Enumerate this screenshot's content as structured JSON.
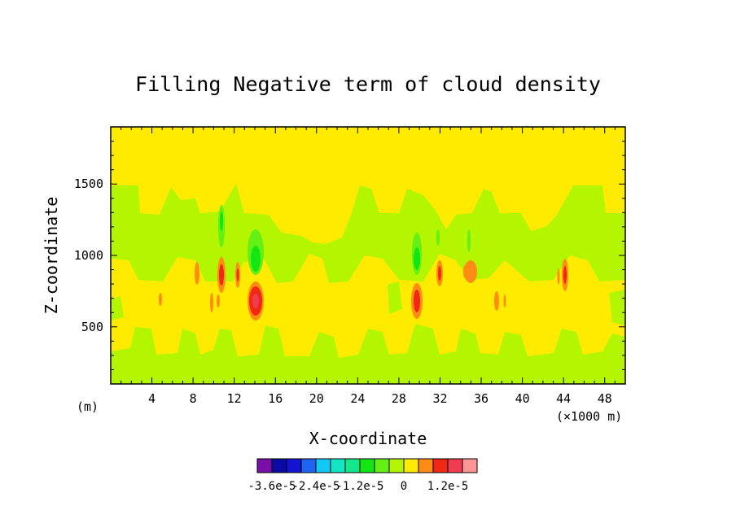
{
  "chart_data": {
    "type": "heatmap",
    "title": "Filling Negative term of cloud density",
    "xlabel": "X-coordinate",
    "ylabel": "Z-coordinate",
    "x_unit_label": "(m)",
    "x_scale_label": "(×1000 m)",
    "xlim": [
      0,
      50
    ],
    "ylim": [
      100,
      1900
    ],
    "x_ticks": [
      4,
      8,
      12,
      16,
      20,
      24,
      28,
      32,
      36,
      40,
      44,
      48
    ],
    "x_tick_labels": [
      "4",
      "8",
      "12",
      "16",
      "20",
      "24",
      "28",
      "32",
      "36",
      "40",
      "44",
      "48"
    ],
    "y_ticks": [
      500,
      1000,
      1500
    ],
    "y_tick_labels": [
      "500",
      "1000",
      "1500"
    ],
    "colorbar": {
      "colors": [
        "#7a0fa8",
        "#0a0aa5",
        "#1414d2",
        "#1e64f0",
        "#14c8f5",
        "#14e6c3",
        "#14e68c",
        "#14e614",
        "#64f014",
        "#b4f500",
        "#ffeb00",
        "#ff8c14",
        "#f02814",
        "#f03c50",
        "#ff9696"
      ],
      "tick_labels": [
        "-3.6e-5",
        "-2.4e-5",
        "-1.2e-5",
        "0",
        "1.2e-5"
      ]
    },
    "background_field": {
      "dominant_value": "0 (yellow band)",
      "secondary_value": "slightly negative (light green band)"
    },
    "features": [
      {
        "kind": "max",
        "x": 14.0,
        "z": 690,
        "level": "1.2e-5 (red/pink core)"
      },
      {
        "kind": "max",
        "x": 29.8,
        "z": 690,
        "level": "1.2e-5 (red core)"
      },
      {
        "kind": "min",
        "x": 14.0,
        "z": 1070,
        "level": "green"
      },
      {
        "kind": "min",
        "x": 29.8,
        "z": 1080,
        "level": "green"
      },
      {
        "kind": "min",
        "x": 10.8,
        "z": 1220,
        "level": "green"
      },
      {
        "kind": "max",
        "x": 8.5,
        "z": 880,
        "level": "orange"
      },
      {
        "kind": "max",
        "x": 10.8,
        "z": 880,
        "level": "red"
      },
      {
        "kind": "max",
        "x": 12.4,
        "z": 880,
        "level": "red"
      },
      {
        "kind": "max",
        "x": 9.8,
        "z": 700,
        "level": "orange"
      },
      {
        "kind": "max",
        "x": 4.8,
        "z": 700,
        "level": "orange"
      },
      {
        "kind": "max",
        "x": 31.8,
        "z": 880,
        "level": "red"
      },
      {
        "kind": "max",
        "x": 34.8,
        "z": 880,
        "level": "orange"
      },
      {
        "kind": "max",
        "x": 37.9,
        "z": 680,
        "level": "orange"
      },
      {
        "kind": "max",
        "x": 43.8,
        "z": 880,
        "level": "red"
      }
    ]
  }
}
